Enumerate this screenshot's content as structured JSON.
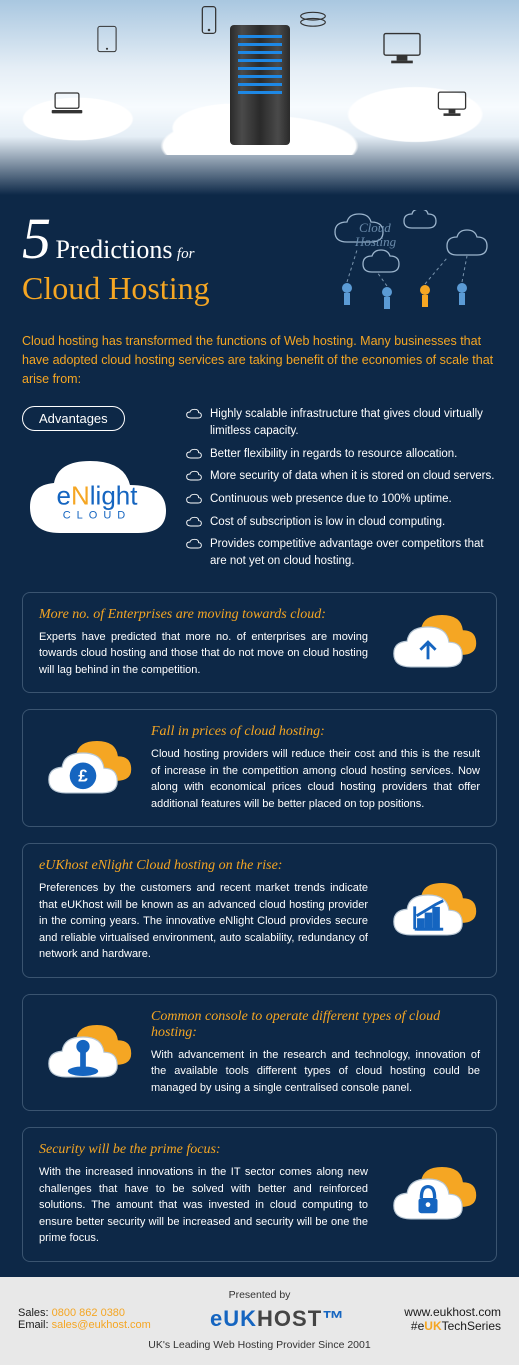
{
  "colors": {
    "bg": "#0d2847",
    "accent": "#f5a623",
    "white": "#ffffff",
    "blue": "#1565c0",
    "border": "#3a5470",
    "footer_bg": "#e8e8e8"
  },
  "title": {
    "number": "5",
    "word": "Predictions",
    "for": "for",
    "main": "Cloud Hosting",
    "badge": "Cloud Hosting"
  },
  "intro": "Cloud hosting has transformed the functions of Web hosting. Many businesses that have adopted cloud hosting services are taking benefit of the economies of scale that arise from:",
  "advantages": {
    "label": "Advantages",
    "brand_e": "e",
    "brand_n": "N",
    "brand_rest": "light",
    "brand_sub": "CLOUD",
    "items": [
      "Highly scalable infrastructure that gives cloud virtually limitless capacity.",
      "Better flexibility in regards to resource allocation.",
      "More security of data when it is stored on cloud servers.",
      "Continuous web presence due to 100% uptime.",
      "Cost of subscription is low in cloud computing.",
      "Provides competitive advantage over competitors that are not yet on cloud hosting."
    ]
  },
  "predictions": [
    {
      "title": "More no. of Enterprises are moving towards cloud:",
      "body": "Experts have predicted that more no. of enterprises are moving towards cloud hosting and those that do not move on cloud hosting will lag behind in the competition.",
      "icon": "upload",
      "align": "right"
    },
    {
      "title": "Fall in prices of cloud hosting:",
      "body": "Cloud hosting providers will reduce their cost and this is the result of increase in the competition among cloud hosting services. Now along with economical prices cloud hosting providers that offer additional features will be better placed on top positions.",
      "icon": "money",
      "align": "left"
    },
    {
      "title": "eUKhost eNlight Cloud hosting on the rise:",
      "body": "Preferences by the customers and recent market trends indicate that eUKhost will be known as an advanced cloud hosting provider in the coming years. The innovative eNlight Cloud provides secure and reliable virtualised environment, auto scalability, redundancy of network and hardware.",
      "icon": "chart",
      "align": "right"
    },
    {
      "title": "Common console to operate different types of cloud hosting:",
      "body": "With advancement in the research and technology, innovation of the available tools different types of cloud hosting could be managed by using a single centralised console panel.",
      "icon": "joystick",
      "align": "left"
    },
    {
      "title": "Security will be the prime focus:",
      "body": "With the increased innovations in the IT sector comes along new challenges that have to be solved with better and reinforced solutions. The amount that was invested in cloud computing to ensure better security will be increased and security will be one the prime focus.",
      "icon": "lock",
      "align": "right"
    }
  ],
  "footer": {
    "presented": "Presented by",
    "sales_label": "Sales: ",
    "sales_phone": "0800 862 0380",
    "email_label": "Email: ",
    "email": "sales@eukhost.com",
    "logo_eu": "eU",
    "logo_k": "K",
    "logo_host": "HOST",
    "url": "www.eukhost.com",
    "hash_pre": "#e",
    "hash_uk": "UK",
    "hash_post": "TechSeries",
    "tagline": "UK's Leading Web Hosting Provider Since 2001"
  }
}
